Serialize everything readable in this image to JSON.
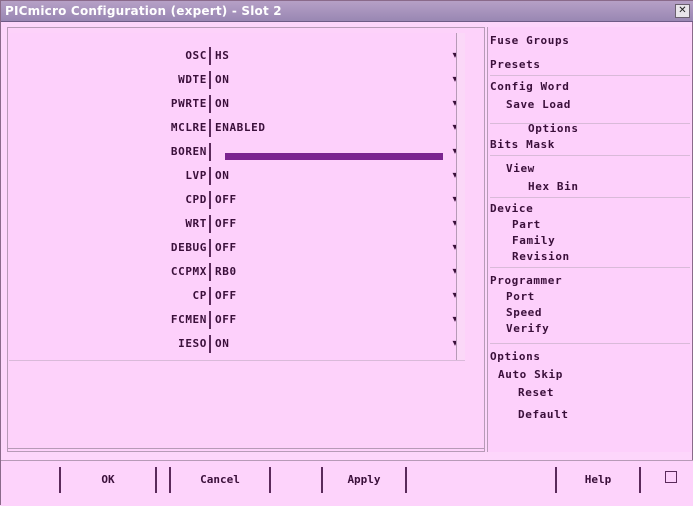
{
  "window": {
    "title": "PICmicro Configuration (expert) - Slot 2",
    "close_glyph": "✕"
  },
  "config_rows": [
    {
      "label": "OSC",
      "value": "HS"
    },
    {
      "label": "WDTE",
      "value": "ON"
    },
    {
      "label": "PWRTE",
      "value": "ON"
    },
    {
      "label": "MCLRE",
      "value": "ENABLED"
    },
    {
      "label": "BOREN",
      "value": ""
    },
    {
      "label": "LVP",
      "value": "ON"
    },
    {
      "label": "CPD",
      "value": "OFF"
    },
    {
      "label": "WRT",
      "value": "OFF"
    },
    {
      "label": "DEBUG",
      "value": "OFF"
    },
    {
      "label": "CCPMX",
      "value": "RB0"
    },
    {
      "label": "CP",
      "value": "OFF"
    },
    {
      "label": "FCMEN",
      "value": "OFF"
    },
    {
      "label": "IESO",
      "value": "ON"
    }
  ],
  "side_panel": {
    "items": [
      "Fuse Groups",
      "Presets",
      "Config Word",
      "Save  Load",
      "Options",
      "Bits  Mask",
      "View",
      "Hex  Bin",
      "Device",
      "Part",
      "Family",
      "Revision",
      "Programmer",
      "Port",
      "Speed",
      "Verify",
      "Options",
      "Auto  Skip",
      "Reset",
      "Default"
    ]
  },
  "bottom_bar": {
    "ok_label": "OK",
    "cancel_label": "Cancel",
    "apply_label": "Apply",
    "help_label": "Help"
  },
  "colors": {
    "titlebar": "#9987b3",
    "selection": "#7b2490",
    "background": "#fdd6fb"
  }
}
